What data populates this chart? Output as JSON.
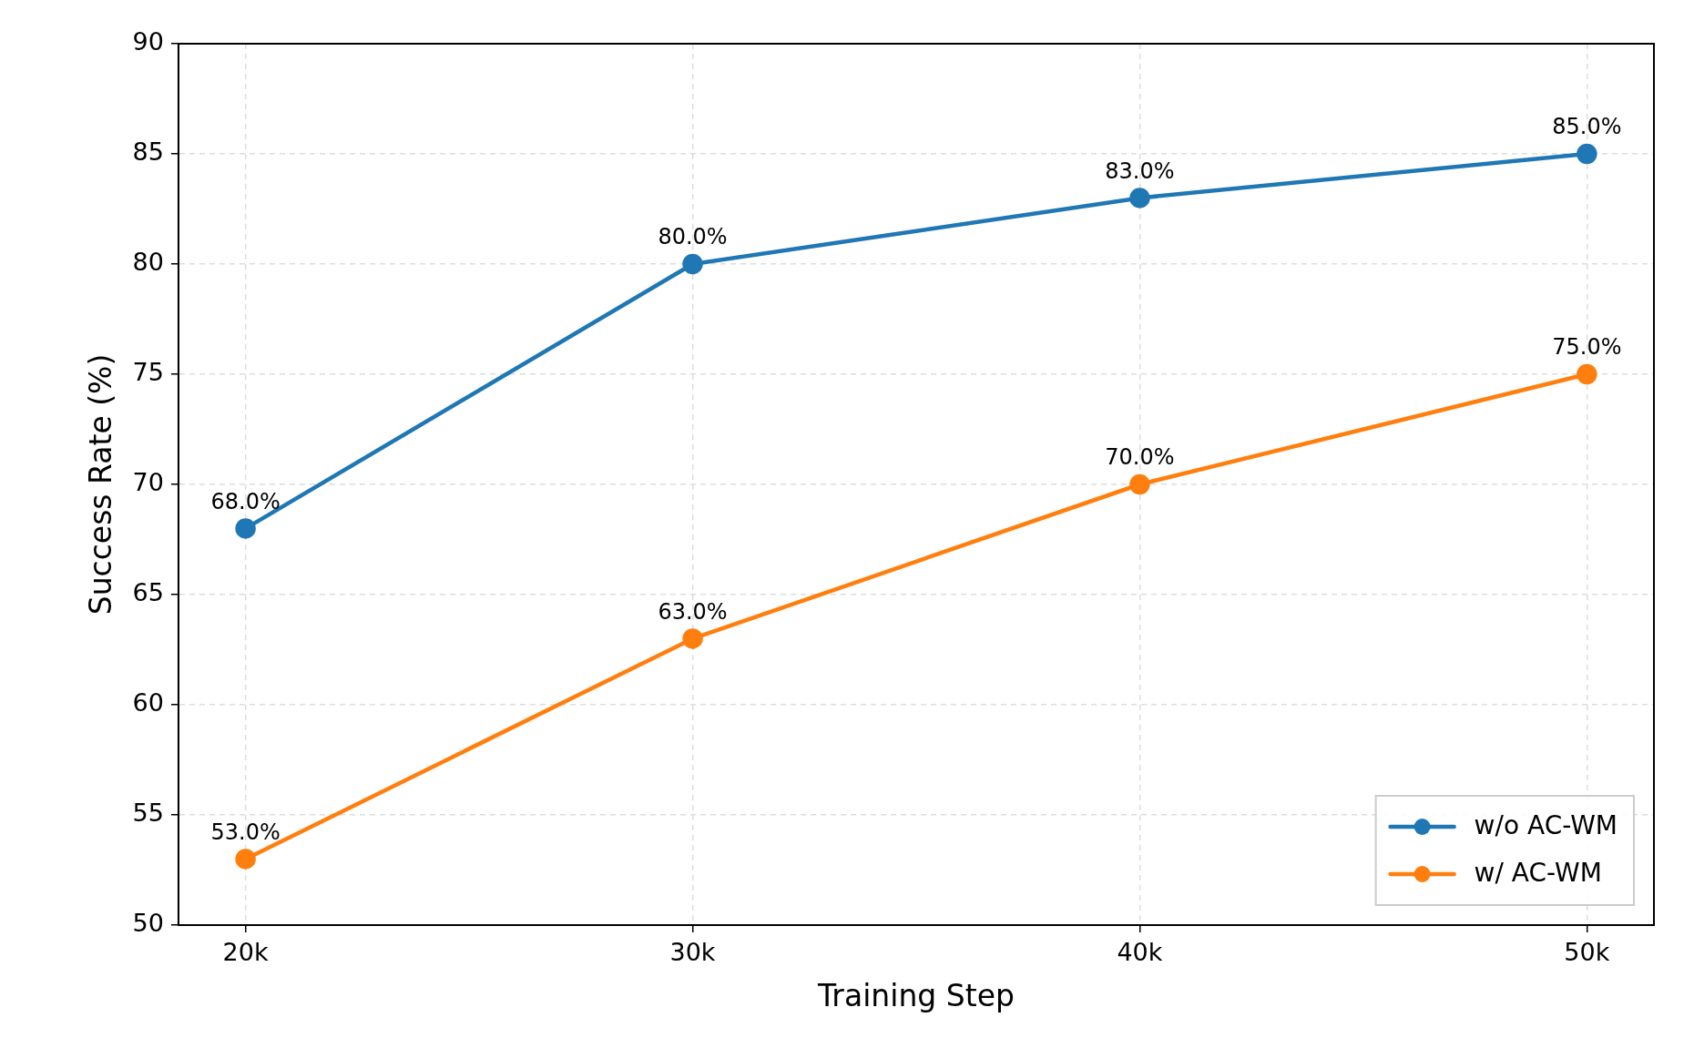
{
  "chart_data": {
    "type": "line",
    "xlabel": "Training Step",
    "ylabel": "Success Rate (%)",
    "categories": [
      "20k",
      "30k",
      "40k",
      "50k"
    ],
    "series": [
      {
        "name": "w/o AC-WM",
        "color": "#1f77b4",
        "values": [
          68,
          80,
          83,
          85
        ],
        "value_labels": [
          "68.0%",
          "80.0%",
          "83.0%",
          "85.0%"
        ]
      },
      {
        "name": "w/ AC-WM",
        "color": "#ff7f0e",
        "values": [
          53,
          63,
          70,
          75
        ],
        "value_labels": [
          "53.0%",
          "63.0%",
          "70.0%",
          "75.0%"
        ]
      }
    ],
    "ylim": [
      50,
      90
    ],
    "yticks": [
      50,
      55,
      60,
      65,
      70,
      75,
      80,
      85,
      90
    ],
    "grid": true,
    "legend": "bottom right",
    "marker": "circle",
    "line_style": "solid"
  }
}
